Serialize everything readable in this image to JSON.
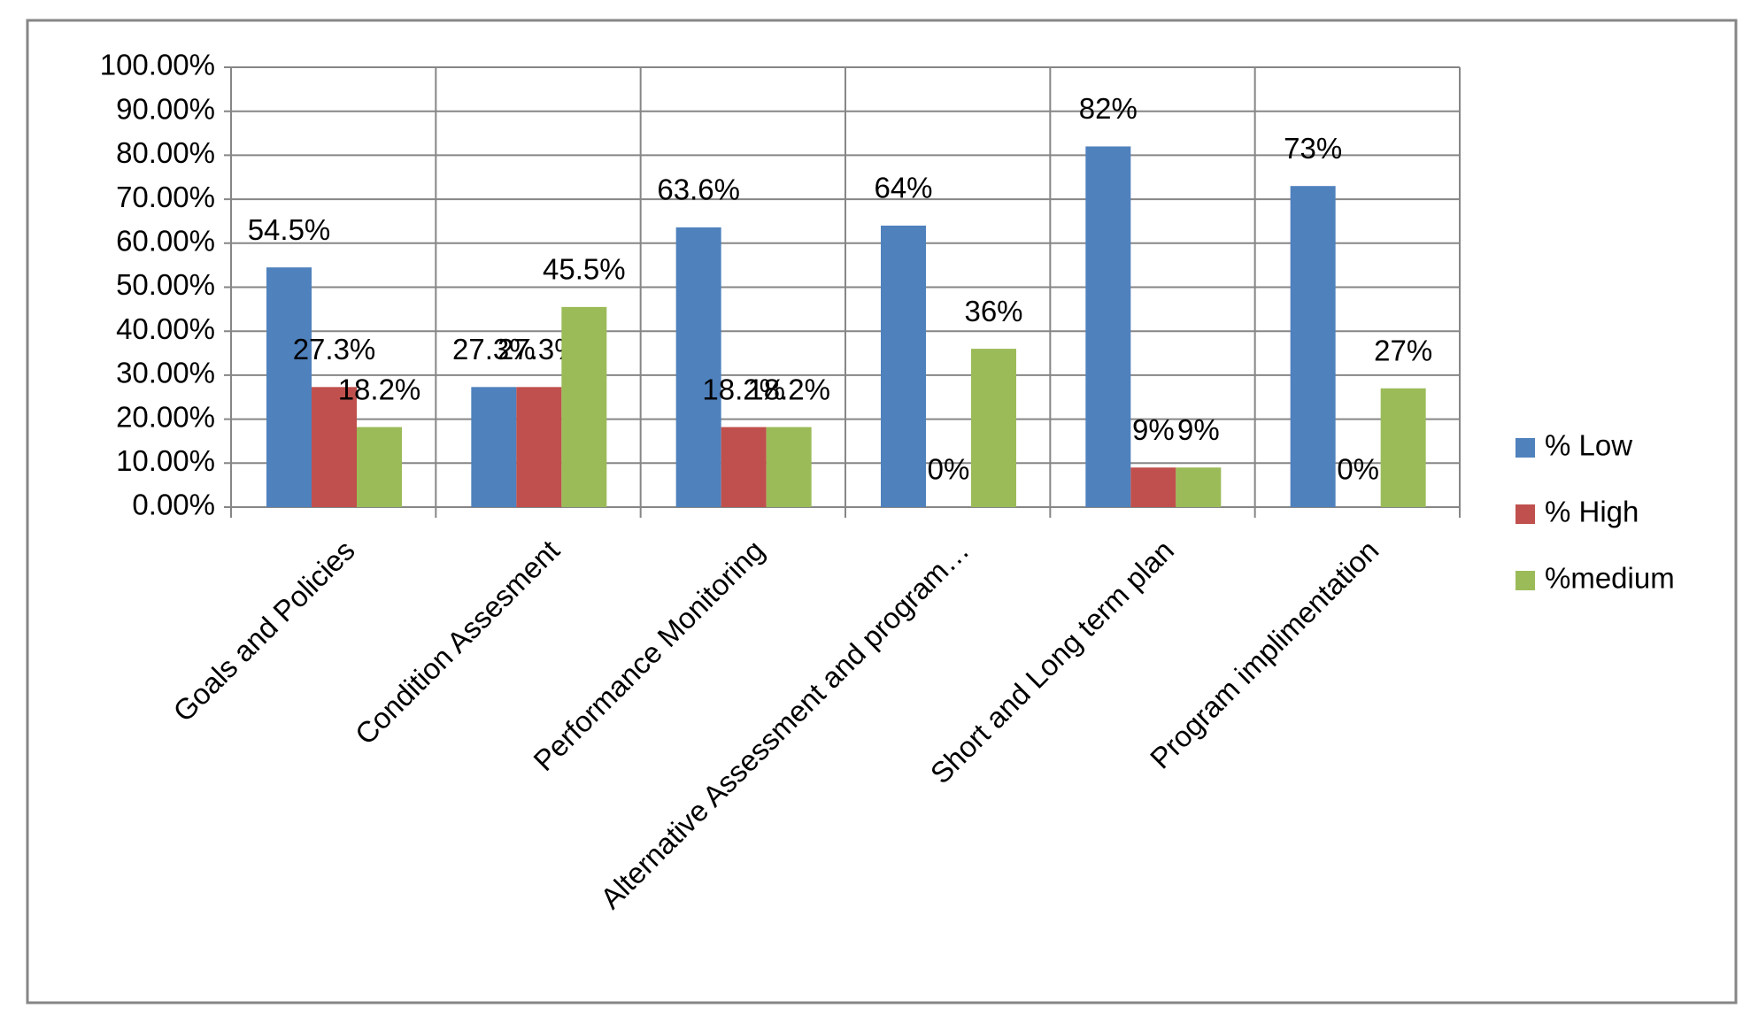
{
  "chart_data": {
    "type": "bar",
    "categories": [
      "Goals and Policies",
      "Condition Assesment",
      "Performance Monitoring",
      "Alternative Assessment and program…",
      "Short and Long term plan",
      "Program implimentation"
    ],
    "series": [
      {
        "name": "% Low",
        "color": "#4f81bd",
        "values": [
          54.5,
          27.3,
          63.6,
          64,
          82,
          73
        ],
        "value_labels": [
          "54.5%",
          "27.3%",
          "63.6%",
          "64%",
          "82%",
          "73%"
        ]
      },
      {
        "name": "% High",
        "color": "#c0504d",
        "values": [
          27.3,
          27.3,
          18.2,
          0,
          9,
          0
        ],
        "value_labels": [
          "27.3%",
          "27.3%",
          "18.2%",
          "0%",
          "9%",
          "0%"
        ]
      },
      {
        "name": "%medium",
        "color": "#9bbb59",
        "values": [
          18.2,
          45.5,
          18.2,
          36,
          9,
          27
        ],
        "value_labels": [
          "18.2%",
          "45.5%",
          "18.2%",
          "36%",
          "9%",
          "27%"
        ]
      }
    ],
    "ylim": [
      0,
      100
    ],
    "yticks": [
      {
        "value": 0,
        "label": "0.00%"
      },
      {
        "value": 10,
        "label": "10.00%"
      },
      {
        "value": 20,
        "label": "20.00%"
      },
      {
        "value": 30,
        "label": "30.00%"
      },
      {
        "value": 40,
        "label": "40.00%"
      },
      {
        "value": 50,
        "label": "50.00%"
      },
      {
        "value": 60,
        "label": "60.00%"
      },
      {
        "value": 70,
        "label": "70.00%"
      },
      {
        "value": 80,
        "label": "80.00%"
      },
      {
        "value": 90,
        "label": "90.00%"
      },
      {
        "value": 100,
        "label": "100.00%"
      }
    ],
    "grid": true,
    "legend": "right"
  }
}
